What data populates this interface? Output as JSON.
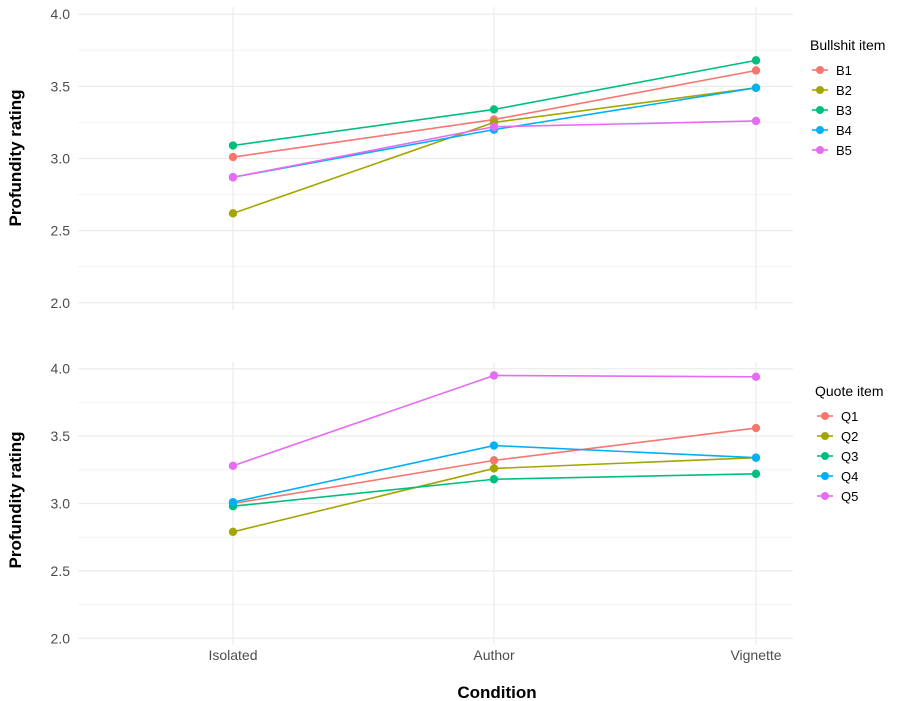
{
  "chart_data": [
    {
      "type": "line",
      "categories": [
        "Isolated",
        "Author",
        "Vignette"
      ],
      "ylabel": "Profundity rating",
      "xlabel": "",
      "ylim": [
        1.95,
        4.05
      ],
      "yticks": [
        2.0,
        2.5,
        3.0,
        3.5,
        4.0
      ],
      "ytick_labels": [
        "2.0",
        "2.5",
        "3.0",
        "3.5",
        "4.0"
      ],
      "grid": true,
      "legend_title": "Bullshit item",
      "legend_position": "right",
      "series": [
        {
          "name": "B1",
          "color": "#F8766D",
          "values": [
            3.01,
            3.27,
            3.61
          ]
        },
        {
          "name": "B2",
          "color": "#A3A500",
          "values": [
            2.62,
            3.25,
            3.49
          ]
        },
        {
          "name": "B3",
          "color": "#00BF7D",
          "values": [
            3.09,
            3.34,
            3.68
          ]
        },
        {
          "name": "B4",
          "color": "#00B0F6",
          "values": [
            2.87,
            3.2,
            3.49
          ]
        },
        {
          "name": "B5",
          "color": "#E76BF3",
          "values": [
            2.87,
            3.22,
            3.26
          ]
        }
      ]
    },
    {
      "type": "line",
      "categories": [
        "Isolated",
        "Author",
        "Vignette"
      ],
      "ylabel": "Profundity rating",
      "xlabel": "Condition",
      "ylim": [
        1.95,
        4.05
      ],
      "yticks": [
        2.0,
        2.5,
        3.0,
        3.5,
        4.0
      ],
      "ytick_labels": [
        "2.0",
        "2.5",
        "3.0",
        "3.5",
        "4.0"
      ],
      "grid": true,
      "legend_title": "Quote item",
      "legend_position": "right",
      "series": [
        {
          "name": "Q1",
          "color": "#F8766D",
          "values": [
            3.0,
            3.32,
            3.56
          ]
        },
        {
          "name": "Q2",
          "color": "#A3A500",
          "values": [
            2.79,
            3.26,
            3.34
          ]
        },
        {
          "name": "Q3",
          "color": "#00BF7D",
          "values": [
            2.98,
            3.18,
            3.22
          ]
        },
        {
          "name": "Q4",
          "color": "#00B0F6",
          "values": [
            3.01,
            3.43,
            3.34
          ]
        },
        {
          "name": "Q5",
          "color": "#E76BF3",
          "values": [
            3.28,
            3.95,
            3.94
          ]
        }
      ]
    }
  ]
}
